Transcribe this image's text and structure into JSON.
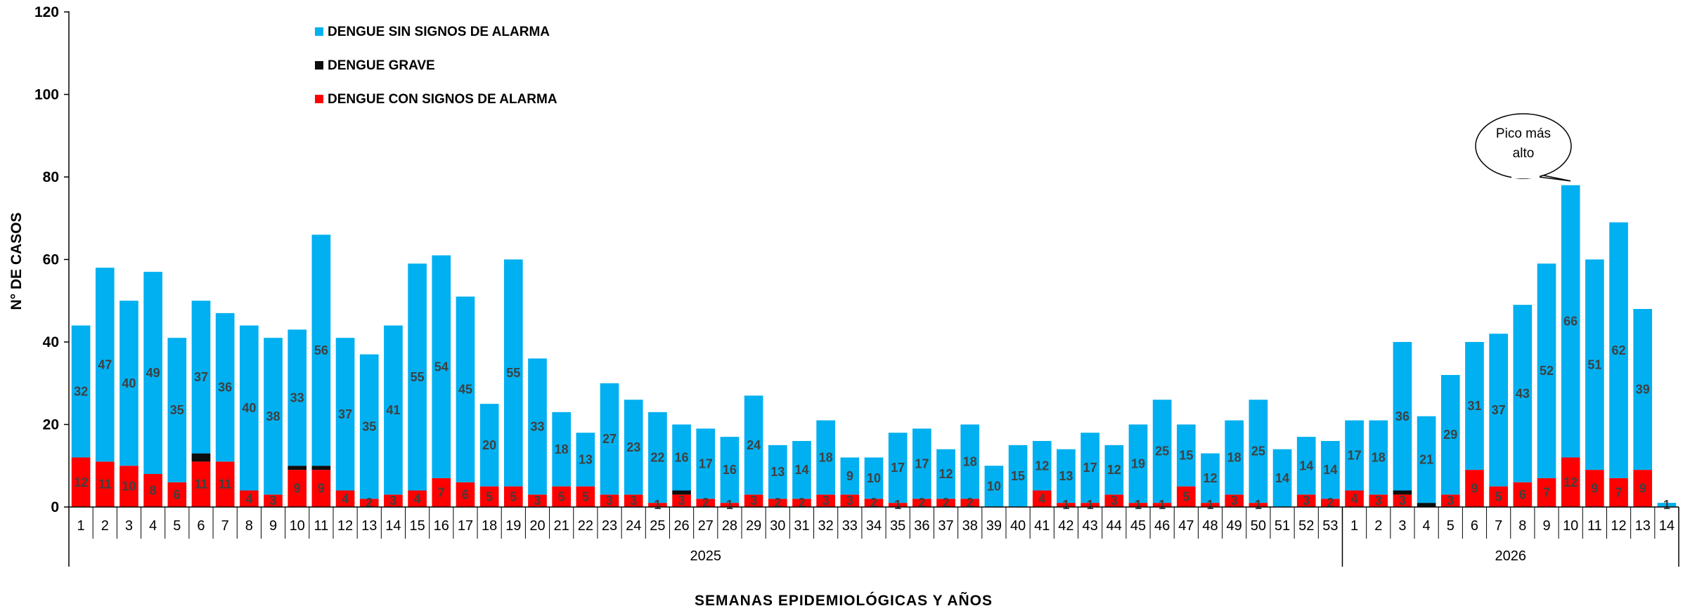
{
  "chart_data": {
    "type": "bar",
    "stacked": true,
    "ylabel": "N° DE CASOS",
    "xlabel": "SEMANAS  EPIDEMIOLÓGICAS  Y AÑOS",
    "ylim": [
      0,
      120
    ],
    "yticks": [
      "0",
      "20",
      "40",
      "60",
      "80",
      "100",
      "120"
    ],
    "legend_position": "top-left",
    "groups": [
      {
        "label": "2025",
        "count": 53
      },
      {
        "label": "2026",
        "count": 14
      }
    ],
    "categories": [
      "1",
      "2",
      "3",
      "4",
      "5",
      "6",
      "7",
      "8",
      "9",
      "10",
      "11",
      "12",
      "13",
      "14",
      "15",
      "16",
      "17",
      "18",
      "19",
      "20",
      "21",
      "22",
      "23",
      "24",
      "25",
      "26",
      "27",
      "28",
      "29",
      "30",
      "31",
      "32",
      "33",
      "34",
      "35",
      "36",
      "37",
      "38",
      "39",
      "40",
      "41",
      "42",
      "43",
      "44",
      "45",
      "46",
      "47",
      "48",
      "49",
      "50",
      "51",
      "52",
      "53",
      "1",
      "2",
      "3",
      "4",
      "5",
      "6",
      "7",
      "8",
      "9",
      "10",
      "11",
      "12",
      "13",
      "14"
    ],
    "series": [
      {
        "name": "DENGUE CON SIGNOS DE ALARMA",
        "color": "#ff0000",
        "values": [
          12,
          11,
          10,
          8,
          6,
          11,
          11,
          4,
          3,
          9,
          9,
          4,
          2,
          3,
          4,
          7,
          6,
          5,
          5,
          3,
          5,
          5,
          3,
          3,
          1,
          3,
          2,
          1,
          3,
          2,
          2,
          3,
          3,
          2,
          1,
          2,
          2,
          2,
          0,
          0,
          4,
          1,
          1,
          3,
          1,
          1,
          5,
          1,
          3,
          1,
          0,
          3,
          2,
          4,
          3,
          3,
          0,
          3,
          9,
          5,
          6,
          7,
          12,
          9,
          7,
          9,
          0
        ]
      },
      {
        "name": "DENGUE GRAVE",
        "color": "#0d0d0d",
        "values": [
          0,
          0,
          0,
          0,
          0,
          2,
          0,
          0,
          0,
          1,
          1,
          0,
          0,
          0,
          0,
          0,
          0,
          0,
          0,
          0,
          0,
          0,
          0,
          0,
          0,
          1,
          0,
          0,
          0,
          0,
          0,
          0,
          0,
          0,
          0,
          0,
          0,
          0,
          0,
          0,
          0,
          0,
          0,
          0,
          0,
          0,
          0,
          0,
          0,
          0,
          0,
          0,
          0,
          0,
          0,
          1,
          1,
          0,
          0,
          0,
          0,
          0,
          0,
          0,
          0,
          0,
          0
        ]
      },
      {
        "name": "DENGUE SIN SIGNOS DE ALARMA",
        "color": "#00b0f0",
        "values": [
          32,
          47,
          40,
          49,
          35,
          37,
          36,
          40,
          38,
          33,
          56,
          37,
          35,
          41,
          55,
          54,
          45,
          20,
          55,
          33,
          18,
          13,
          27,
          23,
          22,
          16,
          17,
          16,
          24,
          13,
          14,
          18,
          9,
          10,
          17,
          17,
          12,
          18,
          10,
          15,
          12,
          13,
          17,
          12,
          19,
          25,
          15,
          12,
          18,
          25,
          14,
          14,
          14,
          17,
          18,
          36,
          21,
          29,
          31,
          37,
          43,
          52,
          66,
          51,
          62,
          39,
          1
        ]
      }
    ],
    "legend": [
      {
        "label": "DENGUE SIN SIGNOS DE ALARMA",
        "color": "#00b0f0"
      },
      {
        "label": "DENGUE GRAVE",
        "color": "#0d0d0d"
      },
      {
        "label": "DENGUE CON SIGNOS DE ALARMA",
        "color": "#ff0000"
      }
    ],
    "annotation": {
      "text_line1": "Pico más",
      "text_line2": "alto",
      "target_index": 62
    }
  }
}
